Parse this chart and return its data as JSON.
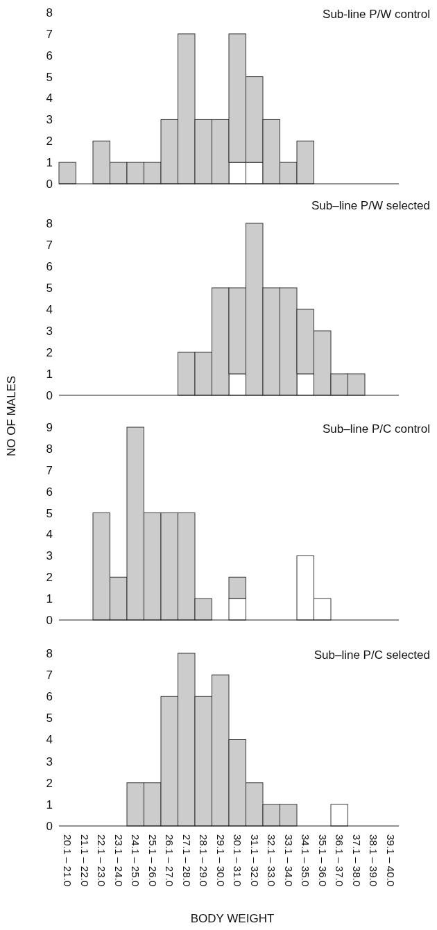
{
  "chart_data": [
    {
      "type": "bar",
      "title": "Sub-line P/W control",
      "stacked": true,
      "tick_labels": "y",
      "categories": [
        null,
        null,
        null,
        null,
        null,
        null,
        null,
        null,
        null,
        null,
        null,
        null,
        null,
        null,
        null,
        null,
        null,
        null,
        null,
        null
      ],
      "ylim": [
        0,
        8
      ],
      "yticks": [
        0,
        1,
        2,
        3,
        4,
        5,
        6,
        7,
        8
      ],
      "series": [
        {
          "color": "#ffffff",
          "values": [
            0,
            0,
            0,
            0,
            0,
            0,
            0,
            0,
            0,
            0,
            1,
            1,
            0,
            0,
            0,
            0,
            0,
            0,
            0,
            0
          ]
        },
        {
          "color": "#cccccc",
          "values": [
            1,
            0,
            2,
            1,
            1,
            1,
            3,
            7,
            3,
            3,
            6,
            4,
            3,
            1,
            2,
            0,
            0,
            0,
            0,
            0
          ]
        }
      ]
    },
    {
      "type": "bar",
      "title": "Sub–line P/W selected",
      "ylabel": "NO OF MALES",
      "stacked": true,
      "tick_labels": "y",
      "categories": [
        null,
        null,
        null,
        null,
        null,
        null,
        null,
        null,
        null,
        null,
        null,
        null,
        null,
        null,
        null,
        null,
        null,
        null,
        null,
        null
      ],
      "ylim": [
        0,
        8
      ],
      "yticks": [
        0,
        1,
        2,
        3,
        4,
        5,
        6,
        7,
        8
      ],
      "series": [
        {
          "color": "#ffffff",
          "values": [
            0,
            0,
            0,
            0,
            0,
            0,
            0,
            0,
            0,
            0,
            1,
            0,
            0,
            0,
            1,
            0,
            0,
            0,
            0,
            0
          ]
        },
        {
          "color": "#cccccc",
          "values": [
            0,
            0,
            0,
            0,
            0,
            0,
            0,
            2,
            2,
            5,
            4,
            8,
            5,
            5,
            3,
            3,
            1,
            1,
            0,
            0
          ]
        }
      ]
    },
    {
      "type": "bar",
      "title": "Sub–line P/C control",
      "stacked": true,
      "tick_labels": "y",
      "categories": [
        null,
        null,
        null,
        null,
        null,
        null,
        null,
        null,
        null,
        null,
        null,
        null,
        null,
        null,
        null,
        null,
        null,
        null,
        null,
        null
      ],
      "ylim": [
        0,
        9
      ],
      "yticks": [
        0,
        1,
        2,
        3,
        4,
        5,
        6,
        7,
        8,
        9
      ],
      "series": [
        {
          "color": "#ffffff",
          "values": [
            0,
            0,
            0,
            0,
            0,
            0,
            0,
            0,
            0,
            0,
            1,
            0,
            0,
            0,
            3,
            1,
            0,
            0,
            0,
            0
          ]
        },
        {
          "color": "#cccccc",
          "values": [
            0,
            0,
            5,
            2,
            9,
            5,
            5,
            5,
            1,
            0,
            1,
            0,
            0,
            0,
            0,
            0,
            0,
            0,
            0,
            0
          ]
        }
      ]
    },
    {
      "type": "bar",
      "title": "Sub–line P/C selected",
      "xlabel": "BODY WEIGHT",
      "stacked": true,
      "categories": [
        "20.1 – 21.0",
        "21.1 – 22.0",
        "22.1 – 23.0",
        "23.1 – 24.0",
        "24.1 – 25.0",
        "25.1 – 26.0",
        "26.1 – 27.0",
        "27.1 – 28.0",
        "28.1 – 29.0",
        "29.1 – 30.0",
        "30.1 – 31.0",
        "31.1 – 32.0",
        "32.1 – 33.0",
        "33.1 – 34.0",
        "34.1 – 35.0",
        "35.1 – 36.0",
        "36.1 – 37.0",
        "37.1 – 38.0",
        "38.1 – 39.0",
        "39.1 – 40.0"
      ],
      "ylim": [
        0,
        8
      ],
      "yticks": [
        0,
        1,
        2,
        3,
        4,
        5,
        6,
        7,
        8
      ],
      "series": [
        {
          "color": "#ffffff",
          "values": [
            0,
            0,
            0,
            0,
            0,
            0,
            0,
            0,
            0,
            0,
            0,
            0,
            0,
            0,
            0,
            0,
            1,
            0,
            0,
            0
          ]
        },
        {
          "color": "#cccccc",
          "values": [
            0,
            0,
            0,
            0,
            2,
            2,
            6,
            8,
            6,
            7,
            4,
            2,
            1,
            1,
            0,
            0,
            0,
            0,
            0,
            0
          ]
        }
      ]
    }
  ]
}
